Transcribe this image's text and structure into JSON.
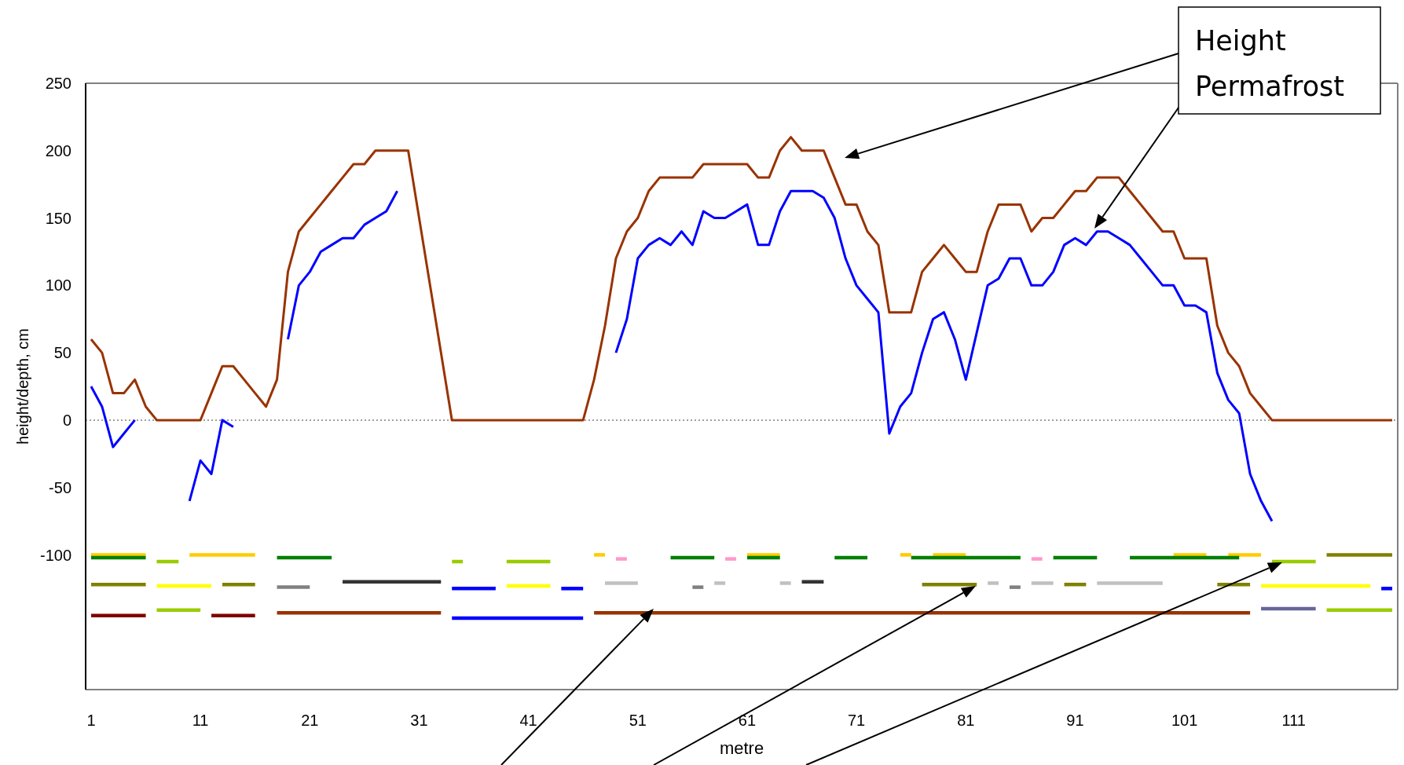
{
  "chart_data": {
    "type": "line",
    "xlabel": "metre",
    "ylabel": "height/depth, cm",
    "x": [
      1,
      2,
      3,
      4,
      5,
      6,
      7,
      8,
      9,
      10,
      11,
      12,
      13,
      14,
      15,
      16,
      17,
      18,
      19,
      20,
      21,
      22,
      23,
      24,
      25,
      26,
      27,
      28,
      29,
      30,
      31,
      32,
      33,
      34,
      35,
      36,
      37,
      38,
      39,
      40,
      41,
      42,
      43,
      44,
      45,
      46,
      47,
      48,
      49,
      50,
      51,
      52,
      53,
      54,
      55,
      56,
      57,
      58,
      59,
      60,
      61,
      62,
      63,
      64,
      65,
      66,
      67,
      68,
      69,
      70,
      71,
      72,
      73,
      74,
      75,
      76,
      77,
      78,
      79,
      80,
      81,
      82,
      83,
      84,
      85,
      86,
      87,
      88,
      89,
      90,
      91,
      92,
      93,
      94,
      95,
      96,
      97,
      98,
      99,
      100,
      101,
      102,
      103,
      104,
      105,
      106,
      107,
      108,
      109,
      110,
      111,
      112,
      113,
      114,
      115,
      116,
      117,
      118,
      119,
      120
    ],
    "xlim": [
      0.5,
      120.5
    ],
    "xticks": [
      1,
      11,
      21,
      31,
      41,
      51,
      61,
      71,
      81,
      91,
      101,
      111
    ],
    "ylim": [
      -200,
      250
    ],
    "yticks": [
      -100,
      -50,
      0,
      50,
      100,
      150,
      200,
      250
    ],
    "marker": "none",
    "line_style": "solid",
    "ref_lines": [
      {
        "axis": "y",
        "value": 0,
        "color": "#808080",
        "line_style": "dotted"
      }
    ],
    "series": [
      {
        "color": "#ffcc00",
        "x": [
          1,
          6
        ],
        "values": [
          -100,
          -100
        ]
      },
      {
        "color": "#ffcc00",
        "x": [
          10,
          16
        ],
        "values": [
          -100,
          -100
        ]
      },
      {
        "color": "#ffcc00",
        "x": [
          47,
          48
        ],
        "values": [
          -100,
          -100
        ]
      },
      {
        "color": "#ffcc00",
        "x": [
          61,
          64
        ],
        "values": [
          -100,
          -100
        ]
      },
      {
        "color": "#ffcc00",
        "x": [
          75,
          76
        ],
        "values": [
          -100,
          -100
        ]
      },
      {
        "color": "#ffcc00",
        "x": [
          78,
          81
        ],
        "values": [
          -100,
          -100
        ]
      },
      {
        "color": "#ffcc00",
        "x": [
          100,
          103
        ],
        "values": [
          -100,
          -100
        ]
      },
      {
        "color": "#ffcc00",
        "x": [
          105,
          108
        ],
        "values": [
          -100,
          -100
        ]
      },
      {
        "color": "#008000",
        "x": [
          1,
          6
        ],
        "values": [
          -102,
          -102
        ]
      },
      {
        "color": "#008000",
        "x": [
          18,
          23
        ],
        "values": [
          -102,
          -102
        ]
      },
      {
        "color": "#008000",
        "x": [
          54,
          58
        ],
        "values": [
          -102,
          -102
        ]
      },
      {
        "color": "#008000",
        "x": [
          61,
          64
        ],
        "values": [
          -102,
          -102
        ]
      },
      {
        "color": "#008000",
        "x": [
          69,
          72
        ],
        "values": [
          -102,
          -102
        ]
      },
      {
        "color": "#008000",
        "x": [
          76,
          86
        ],
        "values": [
          -102,
          -102
        ]
      },
      {
        "color": "#008000",
        "x": [
          89,
          93
        ],
        "values": [
          -102,
          -102
        ]
      },
      {
        "color": "#008000",
        "x": [
          96,
          106
        ],
        "values": [
          -102,
          -102
        ]
      },
      {
        "color": "#99cc00",
        "x": [
          7,
          9
        ],
        "values": [
          -105,
          -105
        ]
      },
      {
        "color": "#99cc00",
        "x": [
          34,
          35
        ],
        "values": [
          -105,
          -105
        ]
      },
      {
        "color": "#99cc00",
        "x": [
          39,
          43
        ],
        "values": [
          -105,
          -105
        ]
      },
      {
        "color": "#99cc00",
        "x": [
          109,
          113
        ],
        "values": [
          -105,
          -105
        ]
      },
      {
        "color": "#99cc00",
        "x": [
          7,
          11
        ],
        "values": [
          -141,
          -141
        ]
      },
      {
        "color": "#99cc00",
        "x": [
          114,
          120
        ],
        "values": [
          -141,
          -141
        ]
      },
      {
        "color": "#ff99cc",
        "x": [
          49,
          50
        ],
        "values": [
          -103,
          -103
        ]
      },
      {
        "color": "#ff99cc",
        "x": [
          59,
          60
        ],
        "values": [
          -103,
          -103
        ]
      },
      {
        "color": "#ff99cc",
        "x": [
          87,
          88
        ],
        "values": [
          -103,
          -103
        ]
      },
      {
        "color": "#808000",
        "x": [
          1,
          6
        ],
        "values": [
          -122,
          -122
        ]
      },
      {
        "color": "#808000",
        "x": [
          13,
          16
        ],
        "values": [
          -122,
          -122
        ]
      },
      {
        "color": "#808000",
        "x": [
          77,
          82
        ],
        "values": [
          -122,
          -122
        ]
      },
      {
        "color": "#808000",
        "x": [
          90,
          92
        ],
        "values": [
          -122,
          -122
        ]
      },
      {
        "color": "#808000",
        "x": [
          104,
          107
        ],
        "values": [
          -122,
          -122
        ]
      },
      {
        "color": "#808000",
        "x": [
          114,
          120
        ],
        "values": [
          -100,
          -100
        ]
      },
      {
        "color": "#ffff00",
        "x": [
          7,
          12
        ],
        "values": [
          -123,
          -123
        ]
      },
      {
        "color": "#ffff00",
        "x": [
          39,
          43
        ],
        "values": [
          -123,
          -123
        ]
      },
      {
        "color": "#ffff00",
        "x": [
          108,
          118
        ],
        "values": [
          -123,
          -123
        ]
      },
      {
        "color": "#808080",
        "x": [
          18,
          21
        ],
        "values": [
          -124,
          -124
        ]
      },
      {
        "color": "#808080",
        "x": [
          56,
          57
        ],
        "values": [
          -124,
          -124
        ]
      },
      {
        "color": "#808080",
        "x": [
          85,
          86
        ],
        "values": [
          -124,
          -124
        ]
      },
      {
        "color": "#333333",
        "x": [
          24,
          33
        ],
        "values": [
          -120,
          -120
        ]
      },
      {
        "color": "#333333",
        "x": [
          66,
          68
        ],
        "values": [
          -120,
          -120
        ]
      },
      {
        "color": "#c0c0c0",
        "x": [
          48,
          51
        ],
        "values": [
          -121,
          -121
        ]
      },
      {
        "color": "#c0c0c0",
        "x": [
          58,
          59
        ],
        "values": [
          -121,
          -121
        ]
      },
      {
        "color": "#c0c0c0",
        "x": [
          64,
          65
        ],
        "values": [
          -121,
          -121
        ]
      },
      {
        "color": "#c0c0c0",
        "x": [
          83,
          84
        ],
        "values": [
          -121,
          -121
        ]
      },
      {
        "color": "#c0c0c0",
        "x": [
          87,
          89
        ],
        "values": [
          -121,
          -121
        ]
      },
      {
        "color": "#c0c0c0",
        "x": [
          93,
          99
        ],
        "values": [
          -121,
          -121
        ]
      },
      {
        "color": "#0000ff",
        "x": [
          34,
          38
        ],
        "values": [
          -125,
          -125
        ]
      },
      {
        "color": "#0000ff",
        "x": [
          44,
          46
        ],
        "values": [
          -125,
          -125
        ]
      },
      {
        "color": "#0000ff",
        "x": [
          119,
          120
        ],
        "values": [
          -125,
          -125
        ]
      },
      {
        "color": "#0000ff",
        "x": [
          34,
          46
        ],
        "values": [
          -147,
          -147
        ]
      },
      {
        "color": "#800000",
        "x": [
          1,
          6
        ],
        "values": [
          -145,
          -145
        ]
      },
      {
        "color": "#800000",
        "x": [
          12,
          16
        ],
        "values": [
          -145,
          -145
        ]
      },
      {
        "color": "#993300",
        "x": [
          18,
          33
        ],
        "values": [
          -143,
          -143
        ]
      },
      {
        "color": "#993300",
        "x": [
          47,
          107
        ],
        "values": [
          -143,
          -143
        ]
      },
      {
        "color": "#666699",
        "x": [
          108,
          113
        ],
        "values": [
          -140,
          -140
        ]
      },
      {
        "name": "Height",
        "color": "#993300",
        "values": [
          60,
          50,
          20,
          20,
          30,
          10,
          0,
          0,
          0,
          0,
          0,
          20,
          40,
          40,
          30,
          20,
          10,
          30,
          110,
          140,
          150,
          160,
          170,
          180,
          190,
          190,
          200,
          200,
          200,
          200,
          150,
          100,
          50,
          0,
          0,
          0,
          0,
          0,
          0,
          0,
          0,
          0,
          0,
          0,
          0,
          0,
          30,
          70,
          120,
          140,
          150,
          170,
          180,
          180,
          180,
          180,
          190,
          190,
          190,
          190,
          190,
          180,
          180,
          200,
          210,
          200,
          200,
          200,
          180,
          160,
          160,
          140,
          130,
          80,
          80,
          80,
          110,
          120,
          130,
          120,
          110,
          110,
          140,
          160,
          160,
          160,
          140,
          150,
          150,
          160,
          170,
          170,
          180,
          180,
          180,
          170,
          160,
          150,
          140,
          140,
          120,
          120,
          120,
          70,
          50,
          40,
          20,
          10,
          0,
          0,
          0,
          0,
          0,
          0,
          0,
          0,
          0,
          0,
          0,
          0
        ]
      },
      {
        "name": "Permafrost",
        "color": "#0000ff",
        "values": [
          25,
          10,
          -20,
          -10,
          0,
          null,
          null,
          null,
          null,
          -60,
          -30,
          -40,
          0,
          -5,
          null,
          null,
          null,
          null,
          60,
          100,
          110,
          125,
          130,
          135,
          135,
          145,
          150,
          155,
          170,
          null,
          null,
          null,
          null,
          null,
          null,
          null,
          null,
          null,
          null,
          null,
          null,
          null,
          null,
          null,
          null,
          null,
          null,
          null,
          50,
          75,
          120,
          130,
          135,
          130,
          140,
          130,
          155,
          150,
          150,
          155,
          160,
          130,
          130,
          155,
          170,
          170,
          170,
          165,
          150,
          120,
          100,
          90,
          80,
          -10,
          10,
          20,
          50,
          75,
          80,
          60,
          30,
          65,
          100,
          105,
          120,
          120,
          100,
          100,
          110,
          130,
          135,
          130,
          140,
          140,
          135,
          130,
          120,
          110,
          100,
          100,
          85,
          85,
          80,
          35,
          15,
          5,
          -40,
          -60,
          -75,
          null,
          null,
          null,
          null,
          null,
          null,
          null,
          null,
          null,
          null,
          null
        ]
      }
    ]
  }
}
